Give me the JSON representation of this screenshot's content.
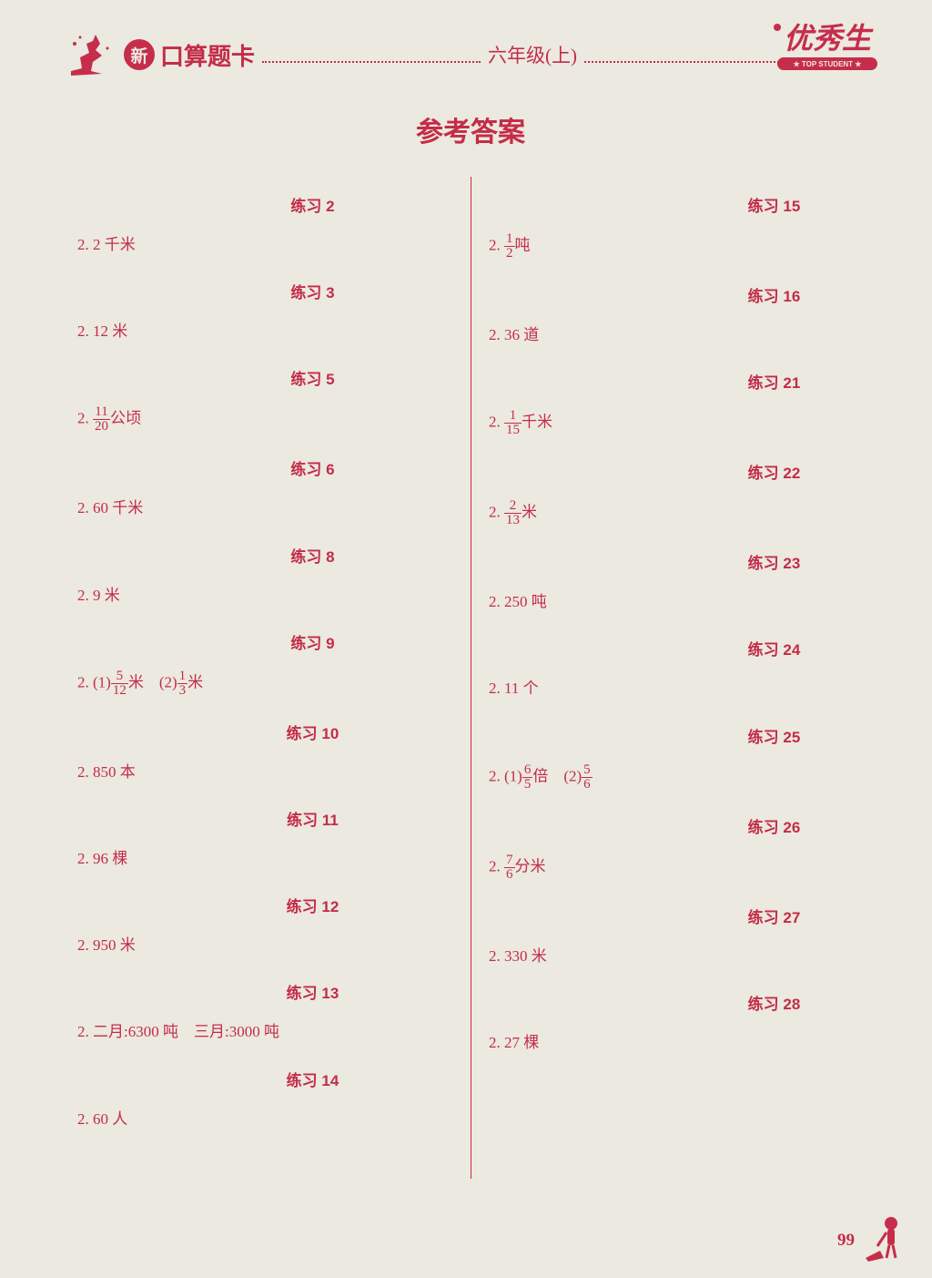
{
  "colors": {
    "ink": "#c42c48",
    "background": "#ebe9e0"
  },
  "typography": {
    "heading_fontsize": 17,
    "body_fontsize": 17,
    "title_fontsize": 30,
    "header_title_fontsize": 26
  },
  "header": {
    "badge": "新",
    "title": "口算题卡",
    "grade": "六年级(上)",
    "logo_main": "优秀生",
    "logo_sub": "★ TOP STUDENT ★"
  },
  "main_title": "参考答案",
  "left_column": [
    {
      "type": "heading",
      "text": "练习 2"
    },
    {
      "type": "answer",
      "text": "2. 2 千米"
    },
    {
      "type": "heading",
      "text": "练习 3"
    },
    {
      "type": "answer",
      "text": "2. 12 米"
    },
    {
      "type": "heading",
      "text": "练习 5"
    },
    {
      "type": "answer_frac",
      "prefix": "2. ",
      "num": "11",
      "den": "20",
      "suffix": "公顷"
    },
    {
      "type": "heading",
      "text": "练习 6"
    },
    {
      "type": "answer",
      "text": "2. 60 千米"
    },
    {
      "type": "heading",
      "text": "练习 8"
    },
    {
      "type": "answer",
      "text": "2. 9 米"
    },
    {
      "type": "heading",
      "text": "练习 9"
    },
    {
      "type": "answer_frac2",
      "prefix": "2. (1)",
      "num1": "5",
      "den1": "12",
      "mid": "米　(2)",
      "num2": "1",
      "den2": "3",
      "suffix": "米"
    },
    {
      "type": "heading",
      "text": "练习 10"
    },
    {
      "type": "answer",
      "text": "2. 850 本"
    },
    {
      "type": "heading",
      "text": "练习 11"
    },
    {
      "type": "answer",
      "text": "2. 96 棵"
    },
    {
      "type": "heading",
      "text": "练习 12"
    },
    {
      "type": "answer",
      "text": "2. 950 米"
    },
    {
      "type": "heading",
      "text": "练习 13"
    },
    {
      "type": "answer",
      "text": "2. 二月:6300 吨　三月:3000 吨"
    },
    {
      "type": "heading",
      "text": "练习 14"
    },
    {
      "type": "answer",
      "text": "2. 60 人"
    }
  ],
  "right_column": [
    {
      "type": "heading",
      "text": "练习 15"
    },
    {
      "type": "answer_frac",
      "prefix": "2. ",
      "num": "1",
      "den": "2",
      "suffix": "吨"
    },
    {
      "type": "heading",
      "text": "练习 16"
    },
    {
      "type": "answer",
      "text": "2. 36 道"
    },
    {
      "type": "heading",
      "text": "练习 21"
    },
    {
      "type": "answer_frac",
      "prefix": "2. ",
      "num": "1",
      "den": "15",
      "suffix": "千米"
    },
    {
      "type": "heading",
      "text": "练习 22"
    },
    {
      "type": "answer_frac",
      "prefix": "2. ",
      "num": "2",
      "den": "13",
      "suffix": "米"
    },
    {
      "type": "heading",
      "text": "练习 23"
    },
    {
      "type": "answer",
      "text": "2. 250 吨"
    },
    {
      "type": "heading",
      "text": "练习 24"
    },
    {
      "type": "answer",
      "text": "2. 11 个"
    },
    {
      "type": "heading",
      "text": "练习 25"
    },
    {
      "type": "answer_frac2",
      "prefix": "2. (1)",
      "num1": "6",
      "den1": "5",
      "mid": "倍　(2)",
      "num2": "5",
      "den2": "6",
      "suffix": ""
    },
    {
      "type": "heading",
      "text": "练习 26"
    },
    {
      "type": "answer_frac",
      "prefix": "2. ",
      "num": "7",
      "den": "6",
      "suffix": "分米"
    },
    {
      "type": "heading",
      "text": "练习 27"
    },
    {
      "type": "answer",
      "text": "2. 330 米"
    },
    {
      "type": "heading",
      "text": "练习 28"
    },
    {
      "type": "answer",
      "text": "2. 27 棵"
    }
  ],
  "page_number": "99"
}
